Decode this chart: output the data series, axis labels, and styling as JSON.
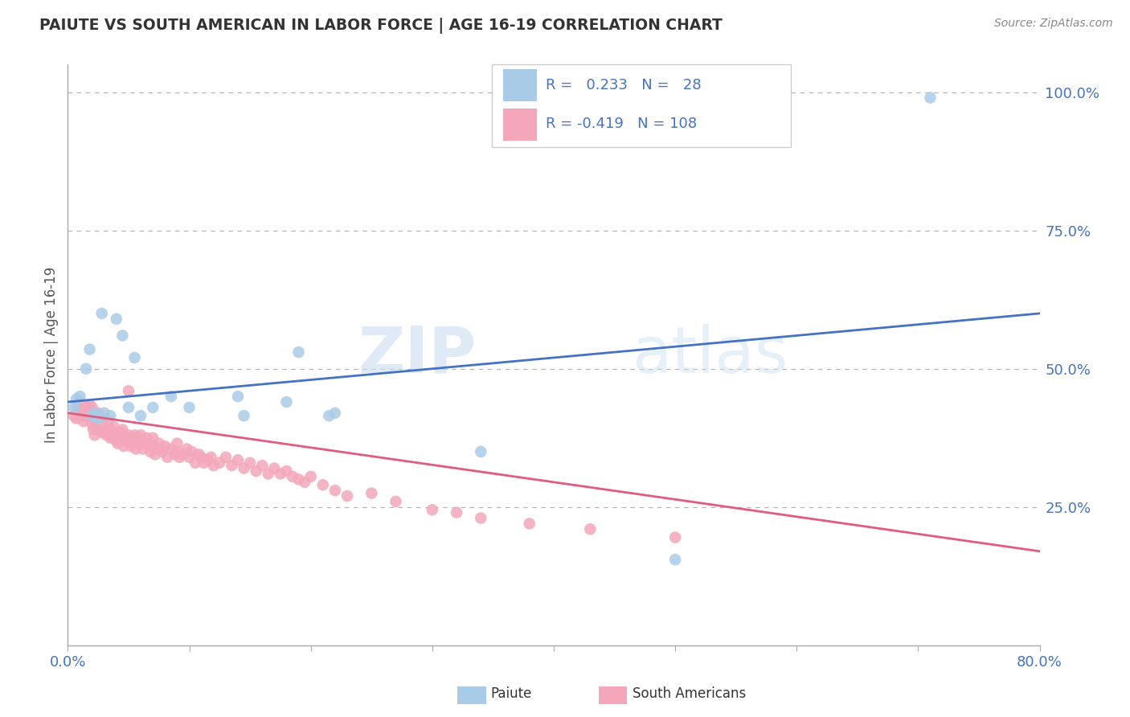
{
  "title": "PAIUTE VS SOUTH AMERICAN IN LABOR FORCE | AGE 16-19 CORRELATION CHART",
  "source_text": "Source: ZipAtlas.com",
  "ylabel": "In Labor Force | Age 16-19",
  "xlim": [
    0.0,
    0.8
  ],
  "ylim": [
    0.0,
    1.05
  ],
  "xticks": [
    0.0,
    0.1,
    0.2,
    0.3,
    0.4,
    0.5,
    0.6,
    0.7,
    0.8
  ],
  "xticklabels": [
    "0.0%",
    "",
    "",
    "",
    "",
    "",
    "",
    "",
    "80.0%"
  ],
  "yticks_right": [
    0.0,
    0.25,
    0.5,
    0.75,
    1.0
  ],
  "yticklabels_right": [
    "",
    "25.0%",
    "50.0%",
    "75.0%",
    "100.0%"
  ],
  "r_paiute": 0.233,
  "n_paiute": 28,
  "r_south": -0.419,
  "n_south": 108,
  "paiute_color": "#a8cce8",
  "south_color": "#f4a7ba",
  "paiute_line_color": "#4472c4",
  "south_line_color": "#e05c80",
  "background_color": "#ffffff",
  "watermark_text": "ZIP",
  "watermark_text2": "atlas",
  "paiute_x": [
    0.005,
    0.007,
    0.01,
    0.015,
    0.018,
    0.02,
    0.022,
    0.025,
    0.028,
    0.03,
    0.035,
    0.04,
    0.045,
    0.05,
    0.055,
    0.06,
    0.07,
    0.085,
    0.1,
    0.14,
    0.145,
    0.18,
    0.19,
    0.215,
    0.22,
    0.34,
    0.5,
    0.71
  ],
  "paiute_y": [
    0.43,
    0.445,
    0.45,
    0.5,
    0.535,
    0.415,
    0.42,
    0.41,
    0.6,
    0.42,
    0.415,
    0.59,
    0.56,
    0.43,
    0.52,
    0.415,
    0.43,
    0.45,
    0.43,
    0.45,
    0.415,
    0.44,
    0.53,
    0.415,
    0.42,
    0.35,
    0.155,
    0.99
  ],
  "south_x": [
    0.005,
    0.007,
    0.008,
    0.01,
    0.01,
    0.012,
    0.013,
    0.015,
    0.015,
    0.016,
    0.017,
    0.018,
    0.02,
    0.02,
    0.021,
    0.022,
    0.022,
    0.023,
    0.025,
    0.025,
    0.026,
    0.027,
    0.028,
    0.03,
    0.03,
    0.031,
    0.032,
    0.033,
    0.035,
    0.035,
    0.036,
    0.038,
    0.04,
    0.04,
    0.041,
    0.042,
    0.043,
    0.045,
    0.045,
    0.046,
    0.048,
    0.05,
    0.05,
    0.051,
    0.052,
    0.053,
    0.055,
    0.055,
    0.056,
    0.058,
    0.06,
    0.06,
    0.062,
    0.064,
    0.065,
    0.066,
    0.068,
    0.07,
    0.07,
    0.072,
    0.075,
    0.075,
    0.078,
    0.08,
    0.082,
    0.085,
    0.088,
    0.09,
    0.09,
    0.092,
    0.095,
    0.098,
    0.1,
    0.102,
    0.105,
    0.108,
    0.11,
    0.112,
    0.115,
    0.118,
    0.12,
    0.125,
    0.13,
    0.135,
    0.14,
    0.145,
    0.15,
    0.155,
    0.16,
    0.165,
    0.17,
    0.175,
    0.18,
    0.185,
    0.19,
    0.195,
    0.2,
    0.21,
    0.22,
    0.23,
    0.25,
    0.27,
    0.3,
    0.32,
    0.34,
    0.38,
    0.43,
    0.5
  ],
  "south_y": [
    0.415,
    0.41,
    0.43,
    0.425,
    0.44,
    0.415,
    0.405,
    0.42,
    0.415,
    0.43,
    0.415,
    0.435,
    0.4,
    0.43,
    0.39,
    0.41,
    0.38,
    0.395,
    0.42,
    0.41,
    0.395,
    0.415,
    0.385,
    0.385,
    0.41,
    0.39,
    0.38,
    0.405,
    0.39,
    0.375,
    0.38,
    0.395,
    0.37,
    0.38,
    0.365,
    0.375,
    0.385,
    0.39,
    0.37,
    0.36,
    0.375,
    0.46,
    0.38,
    0.37,
    0.36,
    0.375,
    0.38,
    0.365,
    0.355,
    0.375,
    0.365,
    0.38,
    0.355,
    0.365,
    0.375,
    0.365,
    0.35,
    0.36,
    0.375,
    0.345,
    0.355,
    0.365,
    0.35,
    0.36,
    0.34,
    0.355,
    0.345,
    0.35,
    0.365,
    0.34,
    0.345,
    0.355,
    0.34,
    0.35,
    0.33,
    0.345,
    0.34,
    0.33,
    0.335,
    0.34,
    0.325,
    0.33,
    0.34,
    0.325,
    0.335,
    0.32,
    0.33,
    0.315,
    0.325,
    0.31,
    0.32,
    0.31,
    0.315,
    0.305,
    0.3,
    0.295,
    0.305,
    0.29,
    0.28,
    0.27,
    0.275,
    0.26,
    0.245,
    0.24,
    0.23,
    0.22,
    0.21,
    0.195
  ]
}
